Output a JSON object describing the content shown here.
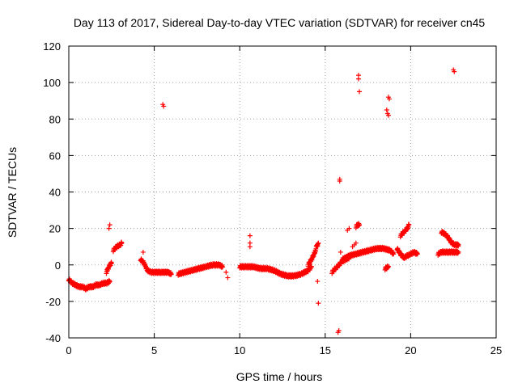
{
  "chart_data": {
    "type": "scatter",
    "title": "Day 113 of 2017, Sidereal Day-to-day VTEC variation (SDTVAR) for receiver cn45",
    "xlabel": "GPS time / hours",
    "ylabel": "SDTVAR / TECUs",
    "xlim": [
      0,
      25
    ],
    "ylim": [
      -40,
      120
    ],
    "xticks": [
      0,
      5,
      10,
      15,
      20,
      25
    ],
    "yticks": [
      -40,
      -20,
      0,
      20,
      40,
      60,
      80,
      100,
      120
    ],
    "xtick_labels": [
      "0",
      "5",
      "10",
      "15",
      "20",
      "25"
    ],
    "ytick_labels": [
      "-40",
      "-20",
      "0",
      "20",
      "40",
      "60",
      "80",
      "100",
      "120"
    ],
    "grid": true,
    "marker": "+",
    "series": [
      {
        "name": "SDTVAR",
        "color": "#ff0000",
        "segments": [
          [
            [
              0.0,
              -8
            ],
            [
              0.2,
              -10
            ],
            [
              0.4,
              -11
            ],
            [
              0.6,
              -12
            ],
            [
              0.8,
              -12
            ],
            [
              1.0,
              -13
            ],
            [
              1.2,
              -12
            ],
            [
              1.4,
              -12
            ],
            [
              1.6,
              -11
            ],
            [
              1.8,
              -11
            ],
            [
              2.0,
              -10
            ],
            [
              2.2,
              -10
            ],
            [
              2.4,
              -9
            ]
          ],
          [
            [
              2.2,
              -4
            ],
            [
              2.3,
              -2
            ],
            [
              2.4,
              0
            ],
            [
              2.5,
              1
            ]
          ],
          [
            [
              2.6,
              8
            ],
            [
              2.8,
              10
            ],
            [
              3.0,
              11
            ],
            [
              3.1,
              12
            ]
          ],
          [
            [
              4.2,
              3
            ],
            [
              4.4,
              1
            ],
            [
              4.6,
              -3
            ],
            [
              4.8,
              -4
            ],
            [
              5.0,
              -4
            ],
            [
              5.4,
              -4
            ],
            [
              5.8,
              -4
            ],
            [
              6.0,
              -5
            ]
          ],
          [
            [
              6.4,
              -5
            ],
            [
              6.8,
              -4
            ],
            [
              7.2,
              -3
            ],
            [
              7.6,
              -2
            ],
            [
              8.0,
              -1
            ],
            [
              8.4,
              0
            ],
            [
              8.8,
              0
            ],
            [
              9.0,
              -1
            ]
          ],
          [
            [
              10.0,
              -1
            ],
            [
              10.4,
              -1
            ],
            [
              10.8,
              -1
            ],
            [
              11.2,
              -2
            ],
            [
              11.6,
              -2
            ],
            [
              12.0,
              -3
            ],
            [
              12.4,
              -5
            ],
            [
              12.8,
              -6
            ],
            [
              13.2,
              -6
            ],
            [
              13.6,
              -5
            ],
            [
              14.0,
              -3
            ],
            [
              14.2,
              -1
            ]
          ],
          [
            [
              14.0,
              0
            ],
            [
              14.2,
              3
            ],
            [
              14.4,
              7
            ],
            [
              14.5,
              10
            ],
            [
              14.6,
              12
            ]
          ],
          [
            [
              15.4,
              -4
            ],
            [
              15.6,
              -2
            ],
            [
              15.8,
              0
            ],
            [
              16.0,
              2
            ],
            [
              16.2,
              3
            ],
            [
              16.4,
              4
            ]
          ],
          [
            [
              16.0,
              3
            ],
            [
              16.4,
              5
            ],
            [
              16.8,
              6
            ],
            [
              17.2,
              7
            ],
            [
              17.6,
              8
            ],
            [
              18.0,
              9
            ],
            [
              18.4,
              9
            ],
            [
              18.8,
              8
            ],
            [
              19.0,
              6
            ]
          ],
          [
            [
              18.5,
              -2
            ],
            [
              18.7,
              -1
            ]
          ],
          [
            [
              19.2,
              9
            ],
            [
              19.4,
              6
            ],
            [
              19.6,
              4
            ],
            [
              19.8,
              5
            ],
            [
              20.0,
              6
            ],
            [
              20.2,
              7
            ],
            [
              20.4,
              6
            ]
          ],
          [
            [
              19.4,
              16
            ],
            [
              19.6,
              18
            ],
            [
              19.8,
              20
            ],
            [
              19.9,
              22
            ]
          ],
          [
            [
              21.6,
              6
            ],
            [
              21.8,
              7
            ],
            [
              22.0,
              7
            ],
            [
              22.4,
              7
            ],
            [
              22.8,
              7
            ]
          ],
          [
            [
              21.8,
              18
            ],
            [
              22.0,
              17
            ],
            [
              22.2,
              15
            ],
            [
              22.4,
              12
            ],
            [
              22.6,
              11
            ],
            [
              22.8,
              11
            ]
          ],
          [
            [
              16.8,
              21
            ],
            [
              16.9,
              22
            ],
            [
              17.0,
              22
            ]
          ]
        ],
        "points": [
          [
            2.35,
            20
          ],
          [
            2.4,
            22
          ],
          [
            4.35,
            7
          ],
          [
            5.5,
            88
          ],
          [
            5.55,
            87
          ],
          [
            9.2,
            -4
          ],
          [
            9.3,
            -7
          ],
          [
            10.6,
            16
          ],
          [
            10.6,
            12
          ],
          [
            10.6,
            10
          ],
          [
            14.55,
            -9
          ],
          [
            14.6,
            -21
          ],
          [
            15.75,
            -37
          ],
          [
            15.8,
            -36
          ],
          [
            15.85,
            46
          ],
          [
            15.85,
            47
          ],
          [
            15.9,
            7
          ],
          [
            16.3,
            19
          ],
          [
            16.4,
            20
          ],
          [
            16.6,
            10
          ],
          [
            16.7,
            11
          ],
          [
            16.8,
            12
          ],
          [
            16.95,
            104
          ],
          [
            16.95,
            102
          ],
          [
            17.0,
            95
          ],
          [
            18.6,
            85
          ],
          [
            18.65,
            83
          ],
          [
            18.7,
            82
          ],
          [
            18.7,
            92
          ],
          [
            18.75,
            91
          ],
          [
            22.5,
            107
          ],
          [
            22.55,
            106
          ]
        ]
      }
    ]
  }
}
